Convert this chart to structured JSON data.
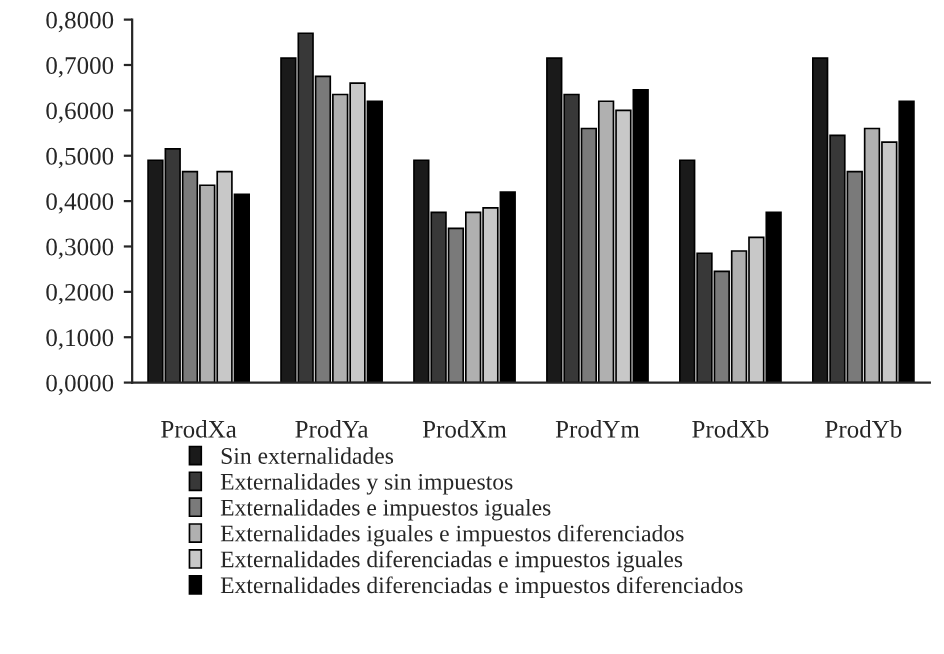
{
  "chart_data": {
    "type": "bar",
    "categories": [
      "ProdXa",
      "ProdYa",
      "ProdXm",
      "ProdYm",
      "ProdXb",
      "ProdYb"
    ],
    "series": [
      {
        "name": "Sin externalidades",
        "color": "#1a1a1a",
        "values": [
          0.49,
          0.715,
          0.49,
          0.715,
          0.49,
          0.715
        ]
      },
      {
        "name": "Externalidades y sin impuestos",
        "color": "#383838",
        "values": [
          0.515,
          0.77,
          0.375,
          0.635,
          0.285,
          0.545
        ]
      },
      {
        "name": "Externalidades e impuestos iguales",
        "color": "#7a7a7a",
        "values": [
          0.465,
          0.675,
          0.34,
          0.56,
          0.245,
          0.465
        ]
      },
      {
        "name": "Externalidades iguales e impuestos diferenciados",
        "color": "#b0b0b0",
        "values": [
          0.435,
          0.635,
          0.375,
          0.62,
          0.29,
          0.56
        ]
      },
      {
        "name": "Externalidades diferenciadas e impuestos iguales",
        "color": "#c8c8c8",
        "values": [
          0.465,
          0.66,
          0.385,
          0.6,
          0.32,
          0.53
        ]
      },
      {
        "name": "Externalidades diferenciadas e impuestos diferenciados",
        "color": "#000000",
        "values": [
          0.415,
          0.62,
          0.42,
          0.645,
          0.375,
          0.62
        ]
      }
    ],
    "ylim": [
      0,
      0.8
    ],
    "yticks": [
      {
        "value": 0,
        "label": "0,0000"
      },
      {
        "value": 0.1,
        "label": "0,1000"
      },
      {
        "value": 0.2,
        "label": "0,2000"
      },
      {
        "value": 0.3,
        "label": "0,3000"
      },
      {
        "value": 0.4,
        "label": "0,4000"
      },
      {
        "value": 0.5,
        "label": "0,5000"
      },
      {
        "value": 0.6,
        "label": "0,6000"
      },
      {
        "value": 0.7,
        "label": "0,7000"
      },
      {
        "value": 0.8,
        "label": "0,8000"
      }
    ],
    "grid": false,
    "legend": "bottom"
  }
}
